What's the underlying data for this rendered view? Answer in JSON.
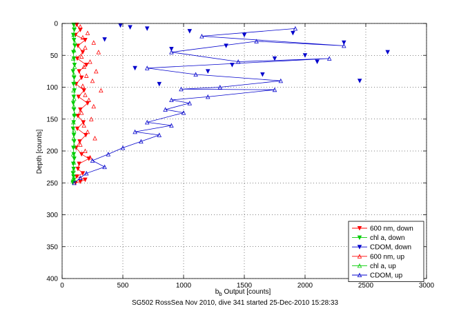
{
  "chart_data": {
    "type": "line",
    "title": "",
    "xlabel": "b",
    "xlabel_sub": "b",
    "xlabel_rest": " Output [counts]",
    "ylabel": "Depth [counts]",
    "xlim": [
      0,
      3000
    ],
    "ylim": [
      0,
      400
    ],
    "y_reversed": true,
    "grid": true,
    "legend_position": "bottom-right",
    "xticks": [
      "0",
      "500",
      "1000",
      "1500",
      "2000",
      "2500",
      "3000"
    ],
    "yticks": [
      "0",
      "50",
      "100",
      "150",
      "200",
      "250",
      "300",
      "350",
      "400"
    ],
    "series": [
      {
        "name": "600 nm, down",
        "color": "#ff0000",
        "marker": "triangle-down",
        "line": true,
        "x": [
          120,
          150,
          110,
          190,
          130,
          170,
          125,
          200,
          140,
          160,
          115,
          180,
          135,
          210,
          150,
          130,
          175,
          125,
          195,
          145,
          115,
          160,
          220,
          140,
          130,
          170,
          120,
          190,
          150,
          110
        ],
        "y": [
          2,
          10,
          18,
          26,
          35,
          45,
          55,
          65,
          75,
          85,
          95,
          105,
          115,
          125,
          135,
          145,
          155,
          165,
          175,
          185,
          195,
          205,
          212,
          220,
          228,
          235,
          240,
          245,
          248,
          250
        ]
      },
      {
        "name": "chl a, down",
        "color": "#00cc00",
        "marker": "triangle-down",
        "line": true,
        "x": [
          95,
          100,
          92,
          98,
          105,
          93,
          97,
          102,
          90,
          99,
          94,
          101,
          96,
          92,
          98,
          100,
          95,
          90,
          97,
          99,
          93,
          96,
          100,
          92,
          95,
          90,
          94,
          97,
          91,
          88
        ],
        "y": [
          2,
          10,
          18,
          26,
          35,
          45,
          55,
          65,
          75,
          85,
          95,
          105,
          115,
          125,
          135,
          145,
          155,
          165,
          175,
          185,
          195,
          205,
          212,
          220,
          228,
          235,
          240,
          245,
          248,
          250
        ]
      },
      {
        "name": "CDOM, down",
        "color": "#0000cc",
        "marker": "triangle-down",
        "line": false,
        "x": [
          480,
          560,
          700,
          1050,
          1500,
          1900,
          2320,
          2680,
          350,
          900,
          1350,
          1750,
          2100,
          600,
          1200,
          1650,
          2450,
          800,
          1400,
          2000
        ],
        "y": [
          3,
          6,
          8,
          12,
          18,
          15,
          30,
          45,
          25,
          40,
          35,
          55,
          60,
          70,
          75,
          80,
          90,
          95,
          65,
          50
        ]
      },
      {
        "name": "600 nm, up",
        "color": "#ff0000",
        "marker": "triangle-up",
        "line": false,
        "x": [
          150,
          210,
          170,
          260,
          190,
          300,
          160,
          230,
          180,
          280,
          200,
          250,
          170,
          320,
          190,
          220,
          260,
          160,
          240,
          180,
          210,
          270,
          150,
          190,
          230
        ],
        "y": [
          5,
          15,
          22,
          30,
          38,
          45,
          52,
          60,
          68,
          75,
          82,
          90,
          98,
          105,
          112,
          120,
          130,
          140,
          150,
          160,
          170,
          180,
          190,
          200,
          210
        ]
      },
      {
        "name": "chl a, up",
        "color": "#00cc00",
        "marker": "triangle-up",
        "line": false,
        "x": [
          100,
          95,
          105,
          98,
          92,
          103,
          97,
          100,
          94,
          99,
          96,
          102,
          93,
          98,
          95,
          100,
          91,
          97,
          94,
          99
        ],
        "y": [
          5,
          18,
          30,
          42,
          55,
          68,
          80,
          92,
          105,
          118,
          130,
          142,
          155,
          168,
          180,
          192,
          205,
          218,
          230,
          245
        ]
      },
      {
        "name": "CDOM, up",
        "color": "#0000cc",
        "marker": "triangle-up",
        "line": true,
        "x": [
          1920,
          1150,
          2320,
          1600,
          900,
          1450,
          2200,
          700,
          1100,
          1800,
          1300,
          980,
          1750,
          1200,
          900,
          1050,
          850,
          1000,
          700,
          900,
          600,
          800,
          650,
          500,
          380,
          250,
          350,
          200,
          150,
          100
        ],
        "y": [
          8,
          20,
          35,
          28,
          45,
          60,
          55,
          70,
          80,
          90,
          100,
          103,
          104,
          115,
          120,
          125,
          135,
          140,
          155,
          160,
          170,
          175,
          185,
          195,
          205,
          215,
          225,
          235,
          242,
          250
        ]
      }
    ]
  },
  "caption": "SG502 RossSea Nov 2010, dive 341 started 25-Dec-2010 15:28:33"
}
